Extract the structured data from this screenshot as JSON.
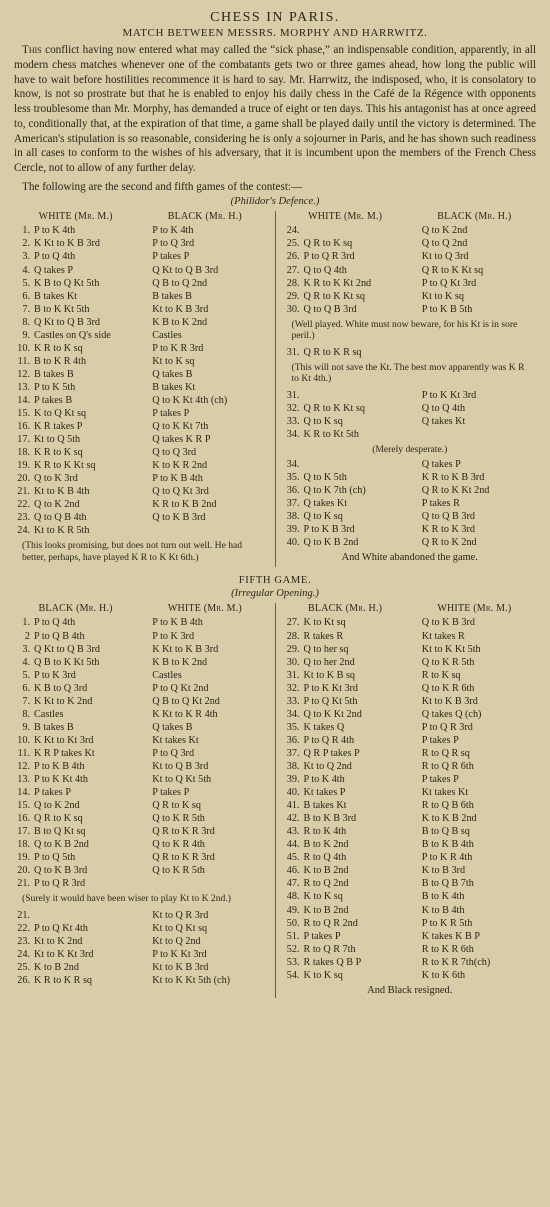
{
  "title": "CHESS IN PARIS.",
  "subtitle": "MATCH BETWEEN MESSRS. MORPHY AND HARRWITZ.",
  "para1": "This conflict having now entered what may called the “sick phase,” an indispensable condition, apparently, in all modern chess matches whenever one of the combatants gets two or three games ahead, how long the public will have to wait before hostilities recommence it is hard to say. Mr. Harrwitz, the indisposed, who, it is consolatory to know, is not so prostrate but that he is enabled to enjoy his daily chess in the Café de la Régence with opponents less troublesome than Mr. Morphy, has demanded a truce of eight or ten days. This his antagonist has at once agreed to, conditionally that, at the expiration of that time, a game shall be played daily until the victory is determined. The American's stipulation is so reasonable, considering he is only a sojourner in Paris, and he has shown such readiness in all cases to conform to the wishes of his adversary, that it is incumbent upon the members of the French Chess Cercle, not to allow of any further delay.",
  "para2": "The following are the second and fifth games of the contest:—",
  "game1_opening": "(Philidor's Defence.)",
  "game1_white_header": "WHITE (Mr. M.)",
  "game1_black_header": "BLACK (Mr. H.)",
  "game1_left": [
    {
      "n": "1.",
      "w": "P to K 4th",
      "b": "P to K 4th"
    },
    {
      "n": "2.",
      "w": "K Kt to K B 3rd",
      "b": "P to Q 3rd"
    },
    {
      "n": "3.",
      "w": "P to Q 4th",
      "b": "P takes P"
    },
    {
      "n": "4.",
      "w": "Q takes P",
      "b": "Q Kt to Q B 3rd"
    },
    {
      "n": "5.",
      "w": "K B to Q Kt 5th",
      "b": "Q B to Q 2nd"
    },
    {
      "n": "6.",
      "w": "B takes Kt",
      "b": "B takes B"
    },
    {
      "n": "7.",
      "w": "B to K Kt 5th",
      "b": "Kt to K B 3rd"
    },
    {
      "n": "8.",
      "w": "Q Kt to Q B 3rd",
      "b": "K B to K 2nd"
    },
    {
      "n": "9.",
      "w": "Castles on Q's side",
      "b": "Castles"
    },
    {
      "n": "10.",
      "w": "K R to K sq",
      "b": "P to K R 3rd"
    },
    {
      "n": "11.",
      "w": "B to K R 4th",
      "b": "Kt to K sq"
    },
    {
      "n": "12.",
      "w": "B takes B",
      "b": "Q takes B"
    },
    {
      "n": "13.",
      "w": "P to K 5th",
      "b": "B takes Kt"
    },
    {
      "n": "14.",
      "w": "P takes B",
      "b": "Q to K Kt 4th (ch)"
    },
    {
      "n": "15.",
      "w": "K to Q Kt sq",
      "b": "P takes P"
    },
    {
      "n": "16.",
      "w": "K R takes P",
      "b": "Q to K Kt 7th"
    },
    {
      "n": "17.",
      "w": "Kt to Q 5th",
      "b": "Q takes K R P"
    },
    {
      "n": "18.",
      "w": "K R to K sq",
      "b": "Q to Q 3rd"
    },
    {
      "n": "19.",
      "w": "K R to K Kt sq",
      "b": "K to K R 2nd"
    },
    {
      "n": "20.",
      "w": "Q to K 3rd",
      "b": "P to K B 4th"
    },
    {
      "n": "21.",
      "w": "Kt to K B 4th",
      "b": "Q to Q Kt 3rd"
    },
    {
      "n": "22.",
      "w": "Q to K 2nd",
      "b": "K R to K B 2nd"
    },
    {
      "n": "23.",
      "w": "Q to Q B 4th",
      "b": "Q to K B 3rd"
    },
    {
      "n": "24.",
      "w": "Kt to K R 5th",
      "b": ""
    }
  ],
  "game1_left_note": "(This looks promising, but does not turn out well. He had better, perhaps, have played K R to K Kt 6th.)",
  "game1_right_top": [
    {
      "n": "24.",
      "w": "",
      "b": "Q to K 2nd"
    },
    {
      "n": "25.",
      "w": "Q R to K sq",
      "b": "Q to Q 2nd"
    },
    {
      "n": "26.",
      "w": "P to Q R 3rd",
      "b": "Kt to Q 3rd"
    },
    {
      "n": "27.",
      "w": "Q to Q 4th",
      "b": "Q R to K Kt sq"
    },
    {
      "n": "28.",
      "w": "K R to K Kt 2nd",
      "b": "P to Q Kt 3rd"
    },
    {
      "n": "29.",
      "w": "Q R to K Kt sq",
      "b": "Kt to K sq"
    },
    {
      "n": "30.",
      "w": "Q to Q B 3rd",
      "b": "P to K B 5th"
    }
  ],
  "game1_right_note1": "(Well played. White must now beware, for his Kt is in sore peril.)",
  "game1_right_31": {
    "n": "31.",
    "w": "Q R to K R sq",
    "b": ""
  },
  "game1_right_note2": "(This will not save the Kt. The best mov apparently was K R to Kt 4th.)",
  "game1_right_mid": [
    {
      "n": "31.",
      "w": "",
      "b": "P to K Kt 3rd"
    },
    {
      "n": "32.",
      "w": "Q R to K Kt sq",
      "b": "Q to Q 4th"
    },
    {
      "n": "33.",
      "w": "Q to K sq",
      "b": "Q takes Kt"
    },
    {
      "n": "34.",
      "w": "K R to Kt 5th",
      "b": ""
    }
  ],
  "game1_right_note3": "(Merely desperate.)",
  "game1_right_bot": [
    {
      "n": "34.",
      "w": "",
      "b": "Q takes P"
    },
    {
      "n": "35.",
      "w": "Q to K 5th",
      "b": "K R to K B 3rd"
    },
    {
      "n": "36.",
      "w": "Q to K 7th (ch)",
      "b": "Q R to K Kt 2nd"
    },
    {
      "n": "37.",
      "w": "Q takes Kt",
      "b": "P takes R"
    },
    {
      "n": "38.",
      "w": "Q to K sq",
      "b": "Q to Q B 3rd"
    },
    {
      "n": "39.",
      "w": "P to K B 3rd",
      "b": "K R to K 3rd"
    },
    {
      "n": "40.",
      "w": "Q to K B 2nd",
      "b": "Q R to K 2nd"
    }
  ],
  "game1_end": "And White abandoned the game.",
  "game2_title": "FIFTH GAME.",
  "game2_opening": "(Irregular Opening.)",
  "game2_black_header": "BLACK (Mr. H.)",
  "game2_white_header": "WHITE (Mr. M.)",
  "game2_left": [
    {
      "n": "1.",
      "b": "P to Q 4th",
      "w": "P to K B 4th"
    },
    {
      "n": "2",
      "b": "P to Q B 4th",
      "w": "P to K 3rd"
    },
    {
      "n": "3.",
      "b": "Q Kt to Q B 3rd",
      "w": "K Kt to K B 3rd"
    },
    {
      "n": "4.",
      "b": "Q B to K Kt 5th",
      "w": "K B to K 2nd"
    },
    {
      "n": "5.",
      "b": "P to K 3rd",
      "w": "Castles"
    },
    {
      "n": "6.",
      "b": "K B to Q 3rd",
      "w": "P to Q Kt 2nd"
    },
    {
      "n": "7.",
      "b": "K Kt to K 2nd",
      "w": "Q B to Q Kt 2nd"
    },
    {
      "n": "8.",
      "b": "Castles",
      "w": "K Kt to K R 4th"
    },
    {
      "n": "9.",
      "b": "B takes B",
      "w": "Q takes B"
    },
    {
      "n": "10.",
      "b": "K Kt to Kt 3rd",
      "w": "Kt takes Kt"
    },
    {
      "n": "11.",
      "b": "K R P takes Kt",
      "w": "P to Q 3rd"
    },
    {
      "n": "12.",
      "b": "P to K B 4th",
      "w": "Kt to Q B 3rd"
    },
    {
      "n": "13.",
      "b": "P to K Kt 4th",
      "w": "Kt to Q Kt 5th"
    },
    {
      "n": "14.",
      "b": "P takes P",
      "w": "P takes P"
    },
    {
      "n": "15.",
      "b": "Q to K 2nd",
      "w": "Q R to K sq"
    },
    {
      "n": "16.",
      "b": "Q R to K sq",
      "w": "Q to K R 5th"
    },
    {
      "n": "17.",
      "b": "B to Q Kt sq",
      "w": "Q R to K R 3rd"
    },
    {
      "n": "18.",
      "b": "Q to K B 2nd",
      "w": "Q to K R 4th"
    },
    {
      "n": "19.",
      "b": "P to Q 5th",
      "w": "Q R to K R 3rd"
    },
    {
      "n": "20.",
      "b": "Q to K B 3rd",
      "w": "Q to K R 5th"
    },
    {
      "n": "21.",
      "b": "P to Q R 3rd",
      "w": ""
    }
  ],
  "game2_left_note": "(Surely it would have been wiser to play Kt to K 2nd.)",
  "game2_left_bot": [
    {
      "n": "21.",
      "b": "",
      "w": "Kt to Q R 3rd"
    },
    {
      "n": "22.",
      "b": "P to Q Kt 4th",
      "w": "Kt to Q Kt sq"
    },
    {
      "n": "23.",
      "b": "Kt to K 2nd",
      "w": "Kt to Q 2nd"
    },
    {
      "n": "24.",
      "b": "Kt to K Kt 3rd",
      "w": "P to K Kt 3rd"
    },
    {
      "n": "25.",
      "b": "K to B 2nd",
      "w": "Kt to K B 3rd"
    },
    {
      "n": "26.",
      "b": "K R to K R sq",
      "w": "Kt to K Kt 5th (ch)"
    }
  ],
  "game2_right": [
    {
      "n": "27.",
      "b": "K to Kt sq",
      "w": "Q to K B 3rd"
    },
    {
      "n": "28.",
      "b": "R takes R",
      "w": "Kt takes R"
    },
    {
      "n": "29.",
      "b": "Q to her sq",
      "w": "Kt to K Kt 5th"
    },
    {
      "n": "30.",
      "b": "Q to her 2nd",
      "w": "Q to K R 5th"
    },
    {
      "n": "31.",
      "b": "Kt to K B sq",
      "w": "R to K sq"
    },
    {
      "n": "32.",
      "b": "P to K Kt 3rd",
      "w": "Q to K R 6th"
    },
    {
      "n": "33.",
      "b": "P to Q Kt 5th",
      "w": "Kt to K B 3rd"
    },
    {
      "n": "34.",
      "b": "Q to K Kt 2nd",
      "w": "Q takes Q (ch)"
    },
    {
      "n": "35.",
      "b": "K takes Q",
      "w": "P to Q R 3rd"
    },
    {
      "n": "36.",
      "b": "P to Q R 4th",
      "w": "P takes P"
    },
    {
      "n": "37.",
      "b": "Q R P takes P",
      "w": "R to Q R sq"
    },
    {
      "n": "38.",
      "b": "Kt to Q 2nd",
      "w": "R to Q R 6th"
    },
    {
      "n": "39.",
      "b": "P to K 4th",
      "w": "P takes P"
    },
    {
      "n": "40.",
      "b": "Kt takes P",
      "w": "Kt takes Kt"
    },
    {
      "n": "41.",
      "b": "B takes Kt",
      "w": "R to Q B 6th"
    },
    {
      "n": "42.",
      "b": "B to K B 3rd",
      "w": "K to K B 2nd"
    },
    {
      "n": "43.",
      "b": "R to K 4th",
      "w": "B to Q B sq"
    },
    {
      "n": "44.",
      "b": "B to K 2nd",
      "w": "B to K B 4th"
    },
    {
      "n": "45.",
      "b": "R to Q 4th",
      "w": "P to K R 4th"
    },
    {
      "n": "46.",
      "b": "K to B 2nd",
      "w": "K to B 3rd"
    },
    {
      "n": "47.",
      "b": "R to Q 2nd",
      "w": "B to Q B 7th"
    },
    {
      "n": "48.",
      "b": "K to K sq",
      "w": "B to K 4th"
    },
    {
      "n": "49.",
      "b": "K to B 2nd",
      "w": "K to B 4th"
    },
    {
      "n": "50.",
      "b": "R to Q R 2nd",
      "w": "P to K R 5th"
    },
    {
      "n": "51.",
      "b": "P takes P",
      "w": "K takes K B P"
    },
    {
      "n": "52.",
      "b": "R to Q R 7th",
      "w": "R to K R 6th"
    },
    {
      "n": "53.",
      "b": "R takes Q B P",
      "w": "R to K R 7th(ch)"
    },
    {
      "n": "54.",
      "b": "K to K sq",
      "w": "K to K 6th"
    }
  ],
  "game2_end": "And Black resigned."
}
